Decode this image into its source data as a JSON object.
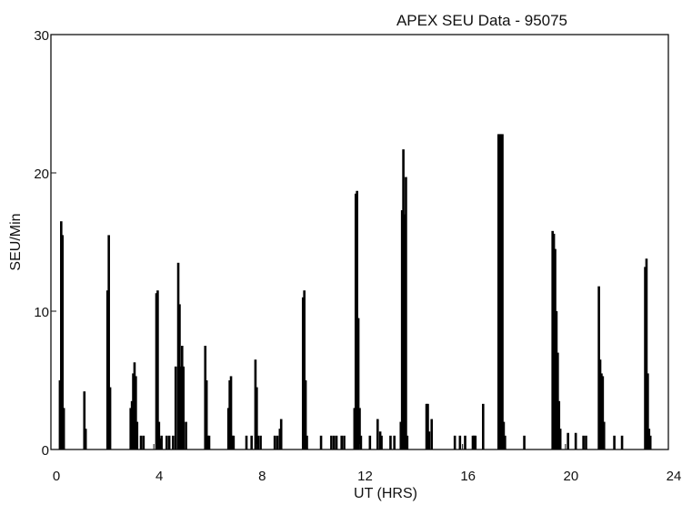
{
  "chart_data": {
    "type": "bar",
    "title": "APEX SEU Data - 95075",
    "xlabel": "UT (HRS)",
    "ylabel": "SEU/Min",
    "xlim": [
      0,
      24
    ],
    "ylim": [
      0,
      30
    ],
    "x_ticks": [
      "0",
      "4",
      "8",
      "12",
      "16",
      "20",
      "24"
    ],
    "y_ticks": [
      "0",
      "10",
      "20",
      "30"
    ],
    "grid": false,
    "legend": "none",
    "bar_color": "#000000",
    "x": [
      0.35,
      0.4,
      0.45,
      0.5,
      1.3,
      1.35,
      2.2,
      2.25,
      2.3,
      3.1,
      3.15,
      3.2,
      3.25,
      3.3,
      3.35,
      3.5,
      3.6,
      4.1,
      4.15,
      4.2,
      4.25,
      4.3,
      4.5,
      4.6,
      4.75,
      4.85,
      4.95,
      5.0,
      5.05,
      5.1,
      5.15,
      5.25,
      6.0,
      6.05,
      6.1,
      6.15,
      6.9,
      6.95,
      7.0,
      7.05,
      7.1,
      7.6,
      7.8,
      7.95,
      8.0,
      8.05,
      8.15,
      8.7,
      8.8,
      8.9,
      8.95,
      9.8,
      9.85,
      9.9,
      9.95,
      10.5,
      10.9,
      11.0,
      11.1,
      11.3,
      11.4,
      11.8,
      11.85,
      11.9,
      11.95,
      12.0,
      12.05,
      12.4,
      12.7,
      12.8,
      12.85,
      13.2,
      13.35,
      13.6,
      13.65,
      13.7,
      13.75,
      13.8,
      13.85,
      14.6,
      14.65,
      14.7,
      14.8,
      15.7,
      15.9,
      16.1,
      16.4,
      16.45,
      16.5,
      16.8,
      17.4,
      17.45,
      17.5,
      17.55,
      17.6,
      17.65,
      18.4,
      19.5,
      19.55,
      19.6,
      19.65,
      19.7,
      19.75,
      19.8,
      20.1,
      20.4,
      20.7,
      20.8,
      21.3,
      21.35,
      21.4,
      21.45,
      21.5,
      21.9,
      22.2,
      23.1,
      23.15,
      23.2,
      23.25,
      23.3
    ],
    "values": [
      5.0,
      16.5,
      15.5,
      3.0,
      4.2,
      1.5,
      11.5,
      15.5,
      4.5,
      3.0,
      3.5,
      5.5,
      6.3,
      5.3,
      2.0,
      1.0,
      1.0,
      11.3,
      11.5,
      2.0,
      0.8,
      1.0,
      1.0,
      1.0,
      1.0,
      6.0,
      13.5,
      10.5,
      6.0,
      7.5,
      6.0,
      2.0,
      7.5,
      5.0,
      1.0,
      1.0,
      3.0,
      5.0,
      5.3,
      1.0,
      1.0,
      1.0,
      1.0,
      6.5,
      4.5,
      1.0,
      1.0,
      1.0,
      1.0,
      1.5,
      2.2,
      11.0,
      11.5,
      5.0,
      1.0,
      1.0,
      1.0,
      1.0,
      1.0,
      1.0,
      1.0,
      3.0,
      18.5,
      18.7,
      9.5,
      3.0,
      1.0,
      1.0,
      2.2,
      1.3,
      1.0,
      1.0,
      1.0,
      2.0,
      17.3,
      21.7,
      17.0,
      19.7,
      1.0,
      3.3,
      3.3,
      1.3,
      2.2,
      1.0,
      1.0,
      1.0,
      1.0,
      1.0,
      1.0,
      3.3,
      22.8,
      22.8,
      22.8,
      22.8,
      2.0,
      1.0,
      1.0,
      15.8,
      15.6,
      14.5,
      10.0,
      7.0,
      3.5,
      1.5,
      1.2,
      1.2,
      1.0,
      1.0,
      11.8,
      6.5,
      5.5,
      5.3,
      2.0,
      1.0,
      1.0,
      13.2,
      13.8,
      5.5,
      1.5,
      1.0
    ]
  }
}
